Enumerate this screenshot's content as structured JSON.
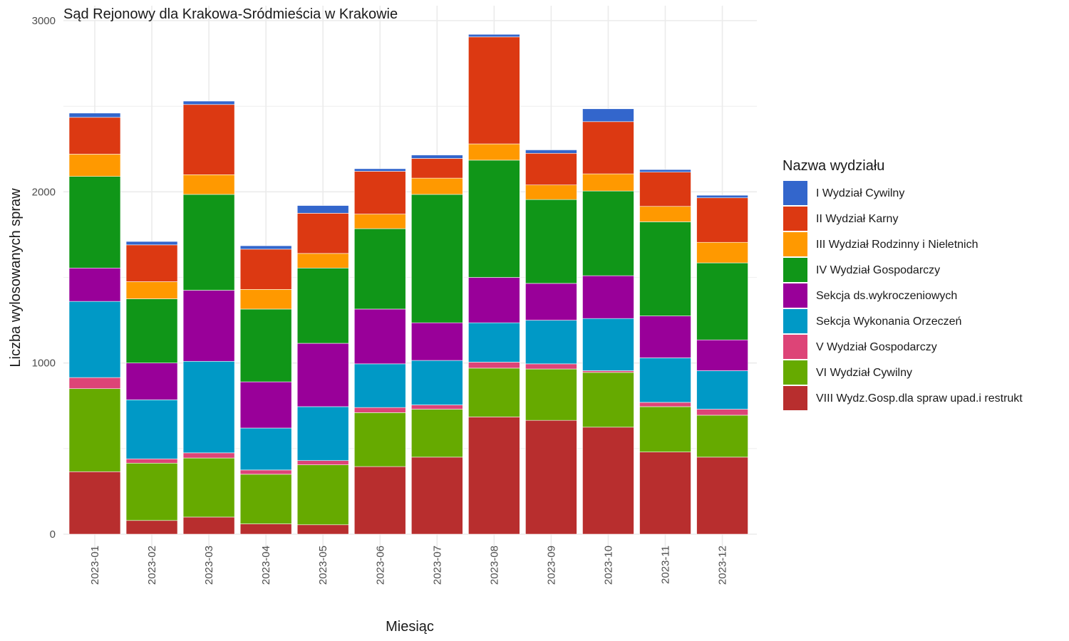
{
  "chart_data": {
    "type": "bar",
    "stacked": true,
    "title": "Sąd Rejonowy dla Krakowa-Sródmieścia w Krakowie",
    "xlabel": "Miesiąc",
    "ylabel": "Liczba wylosowanych spraw",
    "ylim": [
      0,
      3000
    ],
    "yticks": [
      0,
      1000,
      2000,
      3000
    ],
    "grid": true,
    "legend_title": "Nazwa wydziału",
    "legend_position": "right",
    "categories": [
      "2023-01",
      "2023-02",
      "2023-03",
      "2023-04",
      "2023-05",
      "2023-06",
      "2023-07",
      "2023-08",
      "2023-09",
      "2023-10",
      "2023-11",
      "2023-12"
    ],
    "series": [
      {
        "name": "VIII Wydz.Gosp.dla spraw upad.i restrukt",
        "color": "#B82E2E",
        "values": [
          365,
          80,
          100,
          60,
          55,
          395,
          450,
          685,
          665,
          625,
          480,
          450
        ]
      },
      {
        "name": "VI Wydział Cywilny",
        "color": "#66AA00",
        "values": [
          485,
          335,
          345,
          290,
          350,
          315,
          280,
          285,
          300,
          320,
          265,
          245
        ]
      },
      {
        "name": "V Wydział Gospodarczy",
        "color": "#DD4477",
        "values": [
          65,
          25,
          30,
          25,
          25,
          30,
          25,
          35,
          30,
          10,
          25,
          35
        ]
      },
      {
        "name": "Sekcja Wykonania Orzeczeń",
        "color": "#0099C6",
        "values": [
          445,
          345,
          535,
          245,
          315,
          255,
          260,
          230,
          255,
          305,
          260,
          225
        ]
      },
      {
        "name": "Sekcja ds.wykroczeniowych",
        "color": "#990099",
        "values": [
          195,
          215,
          415,
          270,
          370,
          320,
          220,
          265,
          215,
          250,
          245,
          180
        ]
      },
      {
        "name": "IV Wydział Gospodarczy",
        "color": "#109618",
        "values": [
          535,
          375,
          560,
          425,
          440,
          470,
          750,
          685,
          490,
          495,
          550,
          450
        ]
      },
      {
        "name": "III Wydział Rodzinny i Nieletnich",
        "color": "#FF9900",
        "values": [
          130,
          100,
          115,
          115,
          85,
          85,
          95,
          95,
          85,
          100,
          90,
          120
        ]
      },
      {
        "name": "II Wydział Karny",
        "color": "#DC3912",
        "values": [
          215,
          215,
          410,
          235,
          235,
          250,
          115,
          625,
          185,
          305,
          200,
          260
        ]
      },
      {
        "name": "I Wydział Cywilny",
        "color": "#3366CC",
        "values": [
          25,
          20,
          20,
          20,
          45,
          15,
          20,
          15,
          20,
          75,
          15,
          15
        ]
      }
    ],
    "legend_order": [
      "I Wydział Cywilny",
      "II Wydział Karny",
      "III Wydział Rodzinny i Nieletnich",
      "IV Wydział Gospodarczy",
      "Sekcja ds.wykroczeniowych",
      "Sekcja Wykonania Orzeczeń",
      "V Wydział Gospodarczy",
      "VI Wydział Cywilny",
      "VIII Wydz.Gosp.dla spraw upad.i restrukt"
    ]
  }
}
